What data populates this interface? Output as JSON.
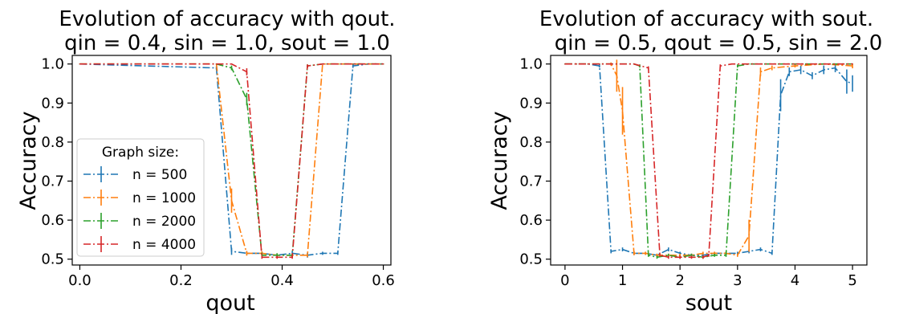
{
  "chart_data": [
    {
      "type": "line",
      "title": [
        "Evolution of accuracy with qout.",
        "qin = 0.4, sin = 1.0, sout = 1.0"
      ],
      "xlabel": "qout",
      "ylabel": "Accuracy",
      "xlim": [
        -0.015,
        0.615
      ],
      "ylim": [
        0.485,
        1.022
      ],
      "xticks": [
        0.0,
        0.2,
        0.4,
        0.6
      ],
      "xtick_labels": [
        "0.0",
        "0.2",
        "0.4",
        "0.6"
      ],
      "yticks": [
        0.5,
        0.6,
        0.7,
        0.8,
        0.9,
        1.0
      ],
      "ytick_labels": [
        "0.5",
        "0.6",
        "0.7",
        "0.8",
        "0.9",
        "1.0"
      ],
      "legend": {
        "title": "Graph size:",
        "placement": "lower-left"
      },
      "series": [
        {
          "name": "n = 500",
          "color": "#1f77b4",
          "x": [
            0.0,
            0.27,
            0.3,
            0.33,
            0.36,
            0.39,
            0.42,
            0.45,
            0.48,
            0.51,
            0.54,
            0.57,
            0.6
          ],
          "y": [
            1.0,
            0.99,
            0.52,
            0.515,
            0.515,
            0.51,
            0.515,
            0.51,
            0.515,
            0.515,
            0.995,
            1.0,
            1.0
          ],
          "err": [
            0,
            0.003,
            0.008,
            0.003,
            0.004,
            0.004,
            0.005,
            0.005,
            0.003,
            0.003,
            0.004,
            0,
            0
          ]
        },
        {
          "name": "n = 1000",
          "color": "#ff7f0e",
          "x": [
            0.0,
            0.27,
            0.3,
            0.33,
            0.36,
            0.39,
            0.42,
            0.45,
            0.48,
            0.51,
            0.54,
            0.57,
            0.6
          ],
          "y": [
            1.0,
            1.0,
            0.65,
            0.515,
            0.515,
            0.51,
            0.51,
            0.51,
            1.0,
            1.0,
            1.0,
            1.0,
            1.0
          ],
          "err": [
            0,
            0,
            0.03,
            0.005,
            0.004,
            0.004,
            0.004,
            0.004,
            0,
            0,
            0,
            0,
            0
          ]
        },
        {
          "name": "n = 2000",
          "color": "#2ca02c",
          "x": [
            0.0,
            0.27,
            0.3,
            0.33,
            0.36,
            0.39,
            0.42,
            0.45,
            0.48,
            0.51,
            0.54,
            0.57,
            0.6
          ],
          "y": [
            1.0,
            1.0,
            0.99,
            0.91,
            0.51,
            0.51,
            0.51,
            0.995,
            1.0,
            1.0,
            1.0,
            1.0,
            1.0
          ],
          "err": [
            0,
            0,
            0.005,
            0.015,
            0.004,
            0.004,
            0.004,
            0.003,
            0,
            0,
            0,
            0,
            0
          ]
        },
        {
          "name": "n = 4000",
          "color": "#d62728",
          "x": [
            0.0,
            0.27,
            0.3,
            0.33,
            0.36,
            0.39,
            0.42,
            0.45,
            0.48,
            0.51,
            0.54,
            0.57,
            0.6
          ],
          "y": [
            1.0,
            1.0,
            1.0,
            0.98,
            0.505,
            0.505,
            0.505,
            0.995,
            1.0,
            1.0,
            1.0,
            1.0,
            1.0
          ],
          "err": [
            0,
            0,
            0,
            0.008,
            0.003,
            0.003,
            0.003,
            0.003,
            0,
            0,
            0,
            0,
            0
          ]
        }
      ]
    },
    {
      "type": "line",
      "title": [
        "Evolution of accuracy with sout.",
        "qin = 0.5, qout = 0.5, sin = 2.0"
      ],
      "xlabel": "sout",
      "ylabel": "Accuracy",
      "xlim": [
        -0.25,
        5.25
      ],
      "ylim": [
        0.485,
        1.022
      ],
      "xticks": [
        0,
        1,
        2,
        3,
        4,
        5
      ],
      "xtick_labels": [
        "0",
        "1",
        "2",
        "3",
        "4",
        "5"
      ],
      "yticks": [
        0.5,
        0.6,
        0.7,
        0.8,
        0.9,
        1.0
      ],
      "ytick_labels": [
        "0.5",
        "0.6",
        "0.7",
        "0.8",
        "0.9",
        "1.0"
      ],
      "series": [
        {
          "name": "n = 500",
          "color": "#1f77b4",
          "x": [
            0.0,
            0.2,
            0.4,
            0.6,
            0.8,
            1.0,
            1.2,
            1.4,
            1.6,
            1.8,
            2.0,
            2.2,
            2.4,
            2.6,
            2.8,
            3.0,
            3.2,
            3.4,
            3.6,
            3.75,
            3.9,
            4.1,
            4.3,
            4.5,
            4.7,
            4.9,
            5.0
          ],
          "y": [
            1.0,
            1.0,
            1.0,
            0.995,
            0.52,
            0.525,
            0.515,
            0.515,
            0.51,
            0.525,
            0.515,
            0.51,
            0.51,
            0.515,
            0.515,
            0.515,
            0.52,
            0.525,
            0.515,
            0.92,
            0.98,
            0.985,
            0.97,
            0.985,
            0.99,
            0.955,
            0.95
          ],
          "err": [
            0,
            0,
            0,
            0.003,
            0.004,
            0.004,
            0.003,
            0.003,
            0.003,
            0.004,
            0.003,
            0.003,
            0.003,
            0.003,
            0.003,
            0.003,
            0.004,
            0.004,
            0.003,
            0.04,
            0.01,
            0.01,
            0.008,
            0.01,
            0.01,
            0.03,
            0.02
          ]
        },
        {
          "name": "n = 1000",
          "color": "#ff7f0e",
          "x": [
            0.0,
            0.2,
            0.4,
            0.6,
            0.8,
            0.9,
            1.0,
            1.2,
            1.4,
            1.6,
            1.8,
            2.0,
            2.2,
            2.4,
            2.6,
            2.8,
            3.0,
            3.2,
            3.4,
            3.6,
            4.0,
            4.5,
            5.0
          ],
          "y": [
            1.0,
            1.0,
            1.0,
            1.0,
            1.0,
            0.97,
            0.88,
            0.515,
            0.515,
            0.51,
            0.51,
            0.51,
            0.51,
            0.515,
            0.515,
            0.515,
            0.51,
            0.56,
            0.98,
            0.99,
            0.995,
            1.0,
            0.995
          ],
          "err": [
            0,
            0,
            0,
            0,
            0.003,
            0.04,
            0.06,
            0.004,
            0.003,
            0.003,
            0.003,
            0.003,
            0.003,
            0.003,
            0.003,
            0.003,
            0.003,
            0.04,
            0.01,
            0.005,
            0.003,
            0,
            0.005
          ]
        },
        {
          "name": "n = 2000",
          "color": "#2ca02c",
          "x": [
            0.0,
            0.2,
            0.4,
            0.6,
            0.8,
            1.0,
            1.2,
            1.3,
            1.45,
            1.6,
            1.8,
            2.0,
            2.2,
            2.4,
            2.6,
            2.8,
            3.0,
            3.2,
            3.4,
            3.6,
            4.0,
            4.5,
            5.0
          ],
          "y": [
            1.0,
            1.0,
            1.0,
            1.0,
            1.0,
            1.0,
            1.0,
            0.995,
            0.51,
            0.505,
            0.51,
            0.505,
            0.51,
            0.505,
            0.51,
            0.51,
            0.995,
            1.0,
            1.0,
            1.0,
            1.0,
            1.0,
            1.0
          ],
          "err": [
            0,
            0,
            0,
            0,
            0,
            0,
            0,
            0.003,
            0.003,
            0.003,
            0.003,
            0.003,
            0.003,
            0.003,
            0.003,
            0.003,
            0.003,
            0,
            0,
            0,
            0,
            0,
            0
          ]
        },
        {
          "name": "n = 4000",
          "color": "#d62728",
          "x": [
            0.0,
            0.2,
            0.4,
            0.6,
            0.8,
            1.0,
            1.2,
            1.45,
            1.65,
            1.8,
            2.0,
            2.2,
            2.4,
            2.5,
            2.7,
            2.9,
            3.1,
            3.3,
            3.6,
            4.0,
            4.5,
            5.0
          ],
          "y": [
            1.0,
            1.0,
            1.0,
            1.0,
            1.0,
            1.0,
            1.0,
            0.99,
            0.51,
            0.505,
            0.505,
            0.505,
            0.505,
            0.51,
            0.995,
            1.0,
            1.0,
            1.0,
            1.0,
            1.0,
            1.0,
            1.0
          ],
          "err": [
            0,
            0,
            0,
            0,
            0,
            0,
            0,
            0.003,
            0.003,
            0.003,
            0.003,
            0.003,
            0.003,
            0.003,
            0.003,
            0,
            0,
            0,
            0,
            0,
            0,
            0
          ]
        }
      ]
    }
  ]
}
